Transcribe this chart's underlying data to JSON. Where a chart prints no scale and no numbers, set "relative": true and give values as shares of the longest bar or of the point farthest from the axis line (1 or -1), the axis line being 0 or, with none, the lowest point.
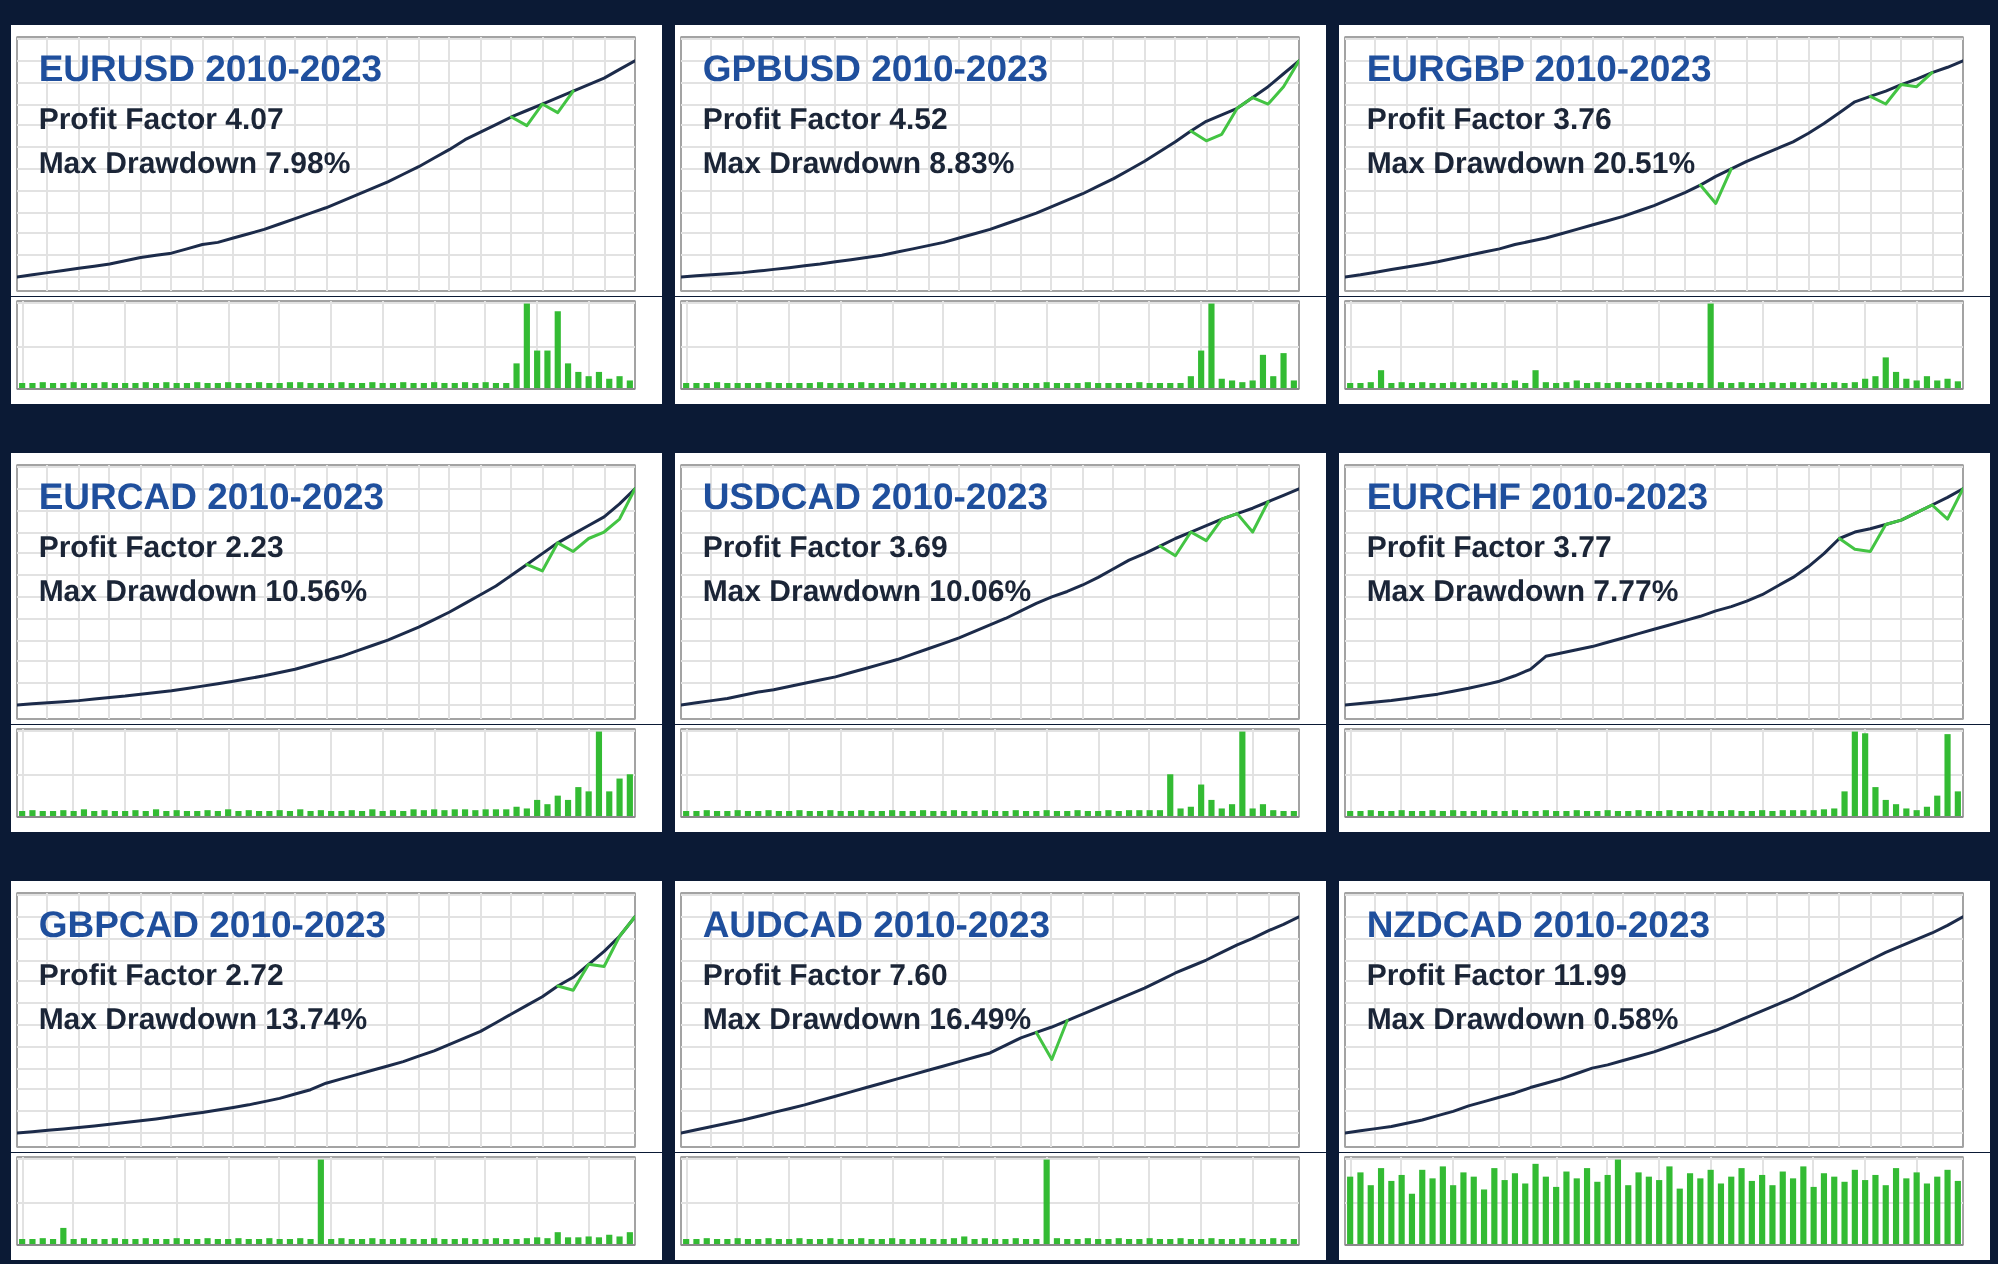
{
  "chart_data": [
    {
      "type": "line",
      "title": "EURUSD 2010-2023",
      "annotations": [
        "Profit Factor 4.07",
        "Max Drawdown 7.98%"
      ],
      "relative": true,
      "grid": true,
      "categories": [
        null,
        null,
        null,
        null,
        null,
        null,
        null,
        null,
        null,
        null,
        null,
        null,
        null,
        null,
        null,
        null,
        null,
        null,
        null,
        null,
        null,
        null,
        null,
        null,
        null,
        null,
        null,
        null,
        null,
        null,
        null,
        null,
        null,
        null,
        null,
        null,
        null,
        null,
        null,
        null,
        null
      ],
      "series": [
        {
          "color": "#1c2b4a",
          "values": [
            0,
            0.01,
            0.02,
            0.03,
            0.04,
            0.05,
            0.06,
            0.075,
            0.09,
            0.1,
            0.11,
            0.13,
            0.15,
            0.16,
            0.18,
            0.2,
            0.22,
            0.245,
            0.27,
            0.295,
            0.32,
            0.35,
            0.38,
            0.41,
            0.44,
            0.475,
            0.51,
            0.55,
            0.59,
            0.635,
            0.67,
            0.705,
            0.74,
            0.77,
            0.8,
            0.83,
            0.86,
            0.89,
            0.92,
            0.96,
            1.0
          ]
        },
        {
          "color": "#43c443",
          "values": [
            null,
            null,
            null,
            null,
            null,
            null,
            null,
            null,
            null,
            null,
            null,
            null,
            null,
            null,
            null,
            null,
            null,
            null,
            null,
            null,
            null,
            null,
            null,
            null,
            null,
            null,
            null,
            null,
            null,
            null,
            null,
            null,
            0.74,
            0.7,
            0.8,
            0.76,
            0.86,
            null,
            null,
            null,
            null
          ]
        }
      ]
    },
    {
      "type": "bar",
      "relative": true,
      "grid": true,
      "color": "#33bb33",
      "categories": [
        null,
        null,
        null,
        null,
        null,
        null,
        null,
        null,
        null,
        null,
        null,
        null,
        null,
        null,
        null,
        null,
        null,
        null,
        null,
        null,
        null,
        null,
        null,
        null,
        null,
        null,
        null,
        null,
        null,
        null,
        null,
        null,
        null,
        null,
        null,
        null,
        null,
        null,
        null,
        null,
        null,
        null,
        null,
        null,
        null,
        null,
        null,
        null,
        null,
        null,
        null,
        null,
        null,
        null,
        null,
        null,
        null,
        null,
        null,
        null
      ],
      "values": [
        0.07,
        0.07,
        0.08,
        0.07,
        0.07,
        0.08,
        0.07,
        0.07,
        0.08,
        0.07,
        0.07,
        0.07,
        0.08,
        0.07,
        0.08,
        0.07,
        0.07,
        0.08,
        0.07,
        0.07,
        0.08,
        0.07,
        0.07,
        0.08,
        0.07,
        0.07,
        0.08,
        0.08,
        0.07,
        0.07,
        0.07,
        0.08,
        0.07,
        0.07,
        0.08,
        0.07,
        0.07,
        0.08,
        0.07,
        0.07,
        0.08,
        0.07,
        0.07,
        0.08,
        0.07,
        0.08,
        0.07,
        0.07,
        0.3,
        1.0,
        0.45,
        0.45,
        0.91,
        0.3,
        0.2,
        0.15,
        0.2,
        0.12,
        0.15,
        0.1
      ]
    },
    {
      "type": "line",
      "title": "GPBUSD 2010-2023",
      "annotations": [
        "Profit Factor 4.52",
        "Max Drawdown 8.83%"
      ],
      "relative": true,
      "grid": true,
      "categories": [
        null,
        null,
        null,
        null,
        null,
        null,
        null,
        null,
        null,
        null,
        null,
        null,
        null,
        null,
        null,
        null,
        null,
        null,
        null,
        null,
        null,
        null,
        null,
        null,
        null,
        null,
        null,
        null,
        null,
        null,
        null,
        null,
        null,
        null,
        null,
        null,
        null,
        null,
        null,
        null,
        null
      ],
      "series": [
        {
          "color": "#1c2b4a",
          "values": [
            0,
            0.005,
            0.01,
            0.015,
            0.02,
            0.027,
            0.035,
            0.043,
            0.052,
            0.06,
            0.07,
            0.08,
            0.09,
            0.1,
            0.115,
            0.13,
            0.145,
            0.16,
            0.18,
            0.2,
            0.22,
            0.245,
            0.27,
            0.295,
            0.325,
            0.355,
            0.385,
            0.42,
            0.455,
            0.495,
            0.535,
            0.58,
            0.625,
            0.675,
            0.72,
            0.75,
            0.78,
            0.83,
            0.88,
            0.94,
            1.0
          ]
        },
        {
          "color": "#43c443",
          "values": [
            null,
            null,
            null,
            null,
            null,
            null,
            null,
            null,
            null,
            null,
            null,
            null,
            null,
            null,
            null,
            null,
            null,
            null,
            null,
            null,
            null,
            null,
            null,
            null,
            null,
            null,
            null,
            null,
            null,
            null,
            null,
            null,
            null,
            0.675,
            0.63,
            0.66,
            0.78,
            0.83,
            0.8,
            0.88,
            1.0
          ]
        }
      ]
    },
    {
      "type": "bar",
      "relative": true,
      "grid": true,
      "color": "#33bb33",
      "categories": [
        null,
        null,
        null,
        null,
        null,
        null,
        null,
        null,
        null,
        null,
        null,
        null,
        null,
        null,
        null,
        null,
        null,
        null,
        null,
        null,
        null,
        null,
        null,
        null,
        null,
        null,
        null,
        null,
        null,
        null,
        null,
        null,
        null,
        null,
        null,
        null,
        null,
        null,
        null,
        null,
        null,
        null,
        null,
        null,
        null,
        null,
        null,
        null,
        null,
        null,
        null,
        null,
        null,
        null,
        null,
        null,
        null,
        null,
        null,
        null
      ],
      "values": [
        0.07,
        0.07,
        0.07,
        0.08,
        0.07,
        0.07,
        0.07,
        0.07,
        0.08,
        0.07,
        0.07,
        0.07,
        0.07,
        0.08,
        0.07,
        0.07,
        0.07,
        0.08,
        0.07,
        0.07,
        0.07,
        0.08,
        0.07,
        0.07,
        0.07,
        0.07,
        0.08,
        0.07,
        0.07,
        0.07,
        0.08,
        0.07,
        0.07,
        0.07,
        0.07,
        0.08,
        0.07,
        0.07,
        0.07,
        0.08,
        0.07,
        0.07,
        0.07,
        0.07,
        0.08,
        0.07,
        0.07,
        0.07,
        0.07,
        0.15,
        0.45,
        1.0,
        0.12,
        0.1,
        0.08,
        0.1,
        0.4,
        0.15,
        0.42,
        0.1
      ]
    },
    {
      "type": "line",
      "title": "EURGBP 2010-2023",
      "annotations": [
        "Profit Factor 3.76",
        "Max Drawdown 20.51%"
      ],
      "relative": true,
      "grid": true,
      "categories": [
        null,
        null,
        null,
        null,
        null,
        null,
        null,
        null,
        null,
        null,
        null,
        null,
        null,
        null,
        null,
        null,
        null,
        null,
        null,
        null,
        null,
        null,
        null,
        null,
        null,
        null,
        null,
        null,
        null,
        null,
        null,
        null,
        null,
        null,
        null,
        null,
        null,
        null,
        null,
        null,
        null
      ],
      "series": [
        {
          "color": "#1c2b4a",
          "values": [
            0,
            0.01,
            0.022,
            0.034,
            0.046,
            0.058,
            0.07,
            0.085,
            0.1,
            0.115,
            0.13,
            0.15,
            0.165,
            0.18,
            0.2,
            0.22,
            0.24,
            0.26,
            0.28,
            0.305,
            0.33,
            0.36,
            0.39,
            0.425,
            0.465,
            0.5,
            0.535,
            0.565,
            0.595,
            0.625,
            0.665,
            0.71,
            0.76,
            0.81,
            0.835,
            0.86,
            0.89,
            0.915,
            0.945,
            0.97,
            1.0
          ]
        },
        {
          "color": "#43c443",
          "values": [
            null,
            null,
            null,
            null,
            null,
            null,
            null,
            null,
            null,
            null,
            null,
            null,
            null,
            null,
            null,
            null,
            null,
            null,
            null,
            null,
            null,
            null,
            null,
            0.425,
            0.34,
            0.5,
            null,
            null,
            null,
            null,
            null,
            null,
            null,
            null,
            0.835,
            0.8,
            0.89,
            0.88,
            0.945,
            null,
            null
          ]
        }
      ]
    },
    {
      "type": "bar",
      "relative": true,
      "grid": true,
      "color": "#33bb33",
      "categories": [
        null,
        null,
        null,
        null,
        null,
        null,
        null,
        null,
        null,
        null,
        null,
        null,
        null,
        null,
        null,
        null,
        null,
        null,
        null,
        null,
        null,
        null,
        null,
        null,
        null,
        null,
        null,
        null,
        null,
        null,
        null,
        null,
        null,
        null,
        null,
        null,
        null,
        null,
        null,
        null,
        null,
        null,
        null,
        null,
        null,
        null,
        null,
        null,
        null,
        null,
        null,
        null,
        null,
        null,
        null,
        null,
        null,
        null,
        null,
        null
      ],
      "values": [
        0.07,
        0.07,
        0.08,
        0.22,
        0.07,
        0.08,
        0.07,
        0.08,
        0.07,
        0.07,
        0.08,
        0.07,
        0.08,
        0.07,
        0.08,
        0.07,
        0.1,
        0.07,
        0.22,
        0.08,
        0.07,
        0.08,
        0.1,
        0.07,
        0.08,
        0.07,
        0.08,
        0.07,
        0.07,
        0.08,
        0.07,
        0.08,
        0.07,
        0.08,
        0.07,
        1.0,
        0.08,
        0.07,
        0.08,
        0.07,
        0.07,
        0.08,
        0.07,
        0.08,
        0.07,
        0.08,
        0.07,
        0.08,
        0.07,
        0.08,
        0.12,
        0.15,
        0.37,
        0.2,
        0.12,
        0.1,
        0.15,
        0.1,
        0.12,
        0.09
      ]
    },
    {
      "type": "line",
      "title": "EURCAD 2010-2023",
      "annotations": [
        "Profit Factor 2.23",
        "Max Drawdown 10.56%"
      ],
      "relative": true,
      "grid": true,
      "categories": [
        null,
        null,
        null,
        null,
        null,
        null,
        null,
        null,
        null,
        null,
        null,
        null,
        null,
        null,
        null,
        null,
        null,
        null,
        null,
        null,
        null,
        null,
        null,
        null,
        null,
        null,
        null,
        null,
        null,
        null,
        null,
        null,
        null,
        null,
        null,
        null,
        null,
        null,
        null,
        null,
        null
      ],
      "series": [
        {
          "color": "#1c2b4a",
          "values": [
            0,
            0.005,
            0.01,
            0.015,
            0.02,
            0.027,
            0.034,
            0.041,
            0.05,
            0.058,
            0.066,
            0.076,
            0.087,
            0.098,
            0.11,
            0.122,
            0.135,
            0.15,
            0.165,
            0.185,
            0.205,
            0.225,
            0.25,
            0.275,
            0.3,
            0.33,
            0.36,
            0.395,
            0.43,
            0.47,
            0.51,
            0.55,
            0.6,
            0.65,
            0.7,
            0.75,
            0.79,
            0.83,
            0.87,
            0.93,
            1.0
          ]
        },
        {
          "color": "#43c443",
          "values": [
            null,
            null,
            null,
            null,
            null,
            null,
            null,
            null,
            null,
            null,
            null,
            null,
            null,
            null,
            null,
            null,
            null,
            null,
            null,
            null,
            null,
            null,
            null,
            null,
            null,
            null,
            null,
            null,
            null,
            null,
            null,
            null,
            null,
            0.65,
            0.62,
            0.75,
            0.71,
            0.77,
            0.8,
            0.86,
            1.0
          ]
        }
      ]
    },
    {
      "type": "bar",
      "relative": true,
      "grid": true,
      "color": "#33bb33",
      "categories": [
        null,
        null,
        null,
        null,
        null,
        null,
        null,
        null,
        null,
        null,
        null,
        null,
        null,
        null,
        null,
        null,
        null,
        null,
        null,
        null,
        null,
        null,
        null,
        null,
        null,
        null,
        null,
        null,
        null,
        null,
        null,
        null,
        null,
        null,
        null,
        null,
        null,
        null,
        null,
        null,
        null,
        null,
        null,
        null,
        null,
        null,
        null,
        null,
        null,
        null,
        null,
        null,
        null,
        null,
        null,
        null,
        null,
        null,
        null,
        null
      ],
      "values": [
        0.07,
        0.08,
        0.07,
        0.07,
        0.08,
        0.07,
        0.09,
        0.07,
        0.08,
        0.07,
        0.07,
        0.08,
        0.07,
        0.09,
        0.07,
        0.08,
        0.07,
        0.07,
        0.08,
        0.07,
        0.09,
        0.07,
        0.08,
        0.07,
        0.07,
        0.08,
        0.07,
        0.09,
        0.07,
        0.08,
        0.07,
        0.07,
        0.08,
        0.07,
        0.09,
        0.07,
        0.08,
        0.07,
        0.09,
        0.08,
        0.09,
        0.08,
        0.09,
        0.09,
        0.08,
        0.09,
        0.09,
        0.09,
        0.12,
        0.1,
        0.2,
        0.15,
        0.25,
        0.2,
        0.35,
        0.3,
        1.0,
        0.3,
        0.45,
        0.5
      ]
    },
    {
      "type": "line",
      "title": "USDCAD 2010-2023",
      "annotations": [
        "Profit Factor 3.69",
        "Max Drawdown 10.06%"
      ],
      "relative": true,
      "grid": true,
      "categories": [
        null,
        null,
        null,
        null,
        null,
        null,
        null,
        null,
        null,
        null,
        null,
        null,
        null,
        null,
        null,
        null,
        null,
        null,
        null,
        null,
        null,
        null,
        null,
        null,
        null,
        null,
        null,
        null,
        null,
        null,
        null,
        null,
        null,
        null,
        null,
        null,
        null,
        null,
        null,
        null,
        null
      ],
      "series": [
        {
          "color": "#1c2b4a",
          "values": [
            0,
            0.01,
            0.02,
            0.03,
            0.045,
            0.06,
            0.07,
            0.085,
            0.1,
            0.115,
            0.13,
            0.15,
            0.17,
            0.19,
            0.21,
            0.235,
            0.26,
            0.285,
            0.31,
            0.34,
            0.37,
            0.4,
            0.435,
            0.47,
            0.5,
            0.525,
            0.555,
            0.59,
            0.63,
            0.67,
            0.7,
            0.735,
            0.77,
            0.8,
            0.83,
            0.86,
            0.885,
            0.91,
            0.94,
            0.97,
            1.0
          ]
        },
        {
          "color": "#43c443",
          "values": [
            null,
            null,
            null,
            null,
            null,
            null,
            null,
            null,
            null,
            null,
            null,
            null,
            null,
            null,
            null,
            null,
            null,
            null,
            null,
            null,
            null,
            null,
            null,
            null,
            null,
            null,
            null,
            null,
            null,
            null,
            null,
            0.735,
            0.69,
            0.8,
            0.76,
            0.86,
            0.885,
            0.8,
            0.94,
            null,
            null
          ]
        }
      ]
    },
    {
      "type": "bar",
      "relative": true,
      "grid": true,
      "color": "#33bb33",
      "categories": [
        null,
        null,
        null,
        null,
        null,
        null,
        null,
        null,
        null,
        null,
        null,
        null,
        null,
        null,
        null,
        null,
        null,
        null,
        null,
        null,
        null,
        null,
        null,
        null,
        null,
        null,
        null,
        null,
        null,
        null,
        null,
        null,
        null,
        null,
        null,
        null,
        null,
        null,
        null,
        null,
        null,
        null,
        null,
        null,
        null,
        null,
        null,
        null,
        null,
        null,
        null,
        null,
        null,
        null,
        null,
        null,
        null,
        null,
        null,
        null
      ],
      "values": [
        0.07,
        0.07,
        0.08,
        0.07,
        0.07,
        0.08,
        0.07,
        0.07,
        0.08,
        0.07,
        0.07,
        0.08,
        0.07,
        0.07,
        0.08,
        0.07,
        0.07,
        0.08,
        0.07,
        0.07,
        0.08,
        0.07,
        0.07,
        0.08,
        0.07,
        0.07,
        0.08,
        0.07,
        0.07,
        0.08,
        0.07,
        0.07,
        0.08,
        0.07,
        0.07,
        0.08,
        0.07,
        0.07,
        0.08,
        0.07,
        0.07,
        0.08,
        0.07,
        0.08,
        0.08,
        0.08,
        0.08,
        0.5,
        0.1,
        0.12,
        0.38,
        0.2,
        0.1,
        0.15,
        1.0,
        0.1,
        0.15,
        0.08,
        0.07,
        0.07
      ]
    },
    {
      "type": "line",
      "title": "EURCHF 2010-2023",
      "annotations": [
        "Profit Factor 3.77",
        "Max Drawdown 7.77%"
      ],
      "relative": true,
      "grid": true,
      "categories": [
        null,
        null,
        null,
        null,
        null,
        null,
        null,
        null,
        null,
        null,
        null,
        null,
        null,
        null,
        null,
        null,
        null,
        null,
        null,
        null,
        null,
        null,
        null,
        null,
        null,
        null,
        null,
        null,
        null,
        null,
        null,
        null,
        null,
        null,
        null,
        null,
        null,
        null,
        null,
        null,
        null
      ],
      "series": [
        {
          "color": "#1c2b4a",
          "values": [
            0,
            0.007,
            0.014,
            0.021,
            0.03,
            0.04,
            0.05,
            0.063,
            0.077,
            0.093,
            0.11,
            0.135,
            0.165,
            0.225,
            0.24,
            0.255,
            0.27,
            0.29,
            0.31,
            0.33,
            0.35,
            0.37,
            0.39,
            0.41,
            0.435,
            0.455,
            0.48,
            0.51,
            0.55,
            0.59,
            0.64,
            0.7,
            0.77,
            0.8,
            0.815,
            0.835,
            0.855,
            0.89,
            0.925,
            0.96,
            1.0
          ]
        },
        {
          "color": "#43c443",
          "values": [
            null,
            null,
            null,
            null,
            null,
            null,
            null,
            null,
            null,
            null,
            null,
            null,
            null,
            null,
            null,
            null,
            null,
            null,
            null,
            null,
            null,
            null,
            null,
            null,
            null,
            null,
            null,
            null,
            null,
            null,
            null,
            null,
            0.77,
            0.72,
            0.71,
            0.835,
            0.855,
            0.89,
            0.925,
            0.86,
            1.0
          ]
        }
      ]
    },
    {
      "type": "bar",
      "relative": true,
      "grid": true,
      "color": "#33bb33",
      "categories": [
        null,
        null,
        null,
        null,
        null,
        null,
        null,
        null,
        null,
        null,
        null,
        null,
        null,
        null,
        null,
        null,
        null,
        null,
        null,
        null,
        null,
        null,
        null,
        null,
        null,
        null,
        null,
        null,
        null,
        null,
        null,
        null,
        null,
        null,
        null,
        null,
        null,
        null,
        null,
        null,
        null,
        null,
        null,
        null,
        null,
        null,
        null,
        null,
        null,
        null,
        null,
        null,
        null,
        null,
        null,
        null,
        null,
        null,
        null,
        null
      ],
      "values": [
        0.07,
        0.07,
        0.08,
        0.07,
        0.07,
        0.08,
        0.07,
        0.07,
        0.08,
        0.07,
        0.08,
        0.07,
        0.07,
        0.08,
        0.07,
        0.07,
        0.08,
        0.07,
        0.07,
        0.08,
        0.07,
        0.07,
        0.08,
        0.07,
        0.07,
        0.08,
        0.07,
        0.07,
        0.08,
        0.07,
        0.07,
        0.08,
        0.07,
        0.07,
        0.08,
        0.07,
        0.07,
        0.08,
        0.07,
        0.07,
        0.08,
        0.07,
        0.08,
        0.08,
        0.08,
        0.08,
        0.09,
        0.1,
        0.3,
        1.0,
        0.98,
        0.35,
        0.2,
        0.15,
        0.1,
        0.08,
        0.12,
        0.25,
        0.97,
        0.3
      ]
    },
    {
      "type": "line",
      "title": "GBPCAD 2010-2023",
      "annotations": [
        "Profit Factor 2.72",
        "Max Drawdown 13.74%"
      ],
      "relative": true,
      "grid": true,
      "categories": [
        null,
        null,
        null,
        null,
        null,
        null,
        null,
        null,
        null,
        null,
        null,
        null,
        null,
        null,
        null,
        null,
        null,
        null,
        null,
        null,
        null,
        null,
        null,
        null,
        null,
        null,
        null,
        null,
        null,
        null,
        null,
        null,
        null,
        null,
        null,
        null,
        null,
        null,
        null,
        null,
        null
      ],
      "series": [
        {
          "color": "#1c2b4a",
          "values": [
            0,
            0.006,
            0.012,
            0.018,
            0.025,
            0.032,
            0.04,
            0.048,
            0.056,
            0.065,
            0.075,
            0.085,
            0.095,
            0.106,
            0.118,
            0.13,
            0.145,
            0.16,
            0.18,
            0.2,
            0.23,
            0.25,
            0.27,
            0.29,
            0.31,
            0.33,
            0.355,
            0.38,
            0.41,
            0.44,
            0.47,
            0.51,
            0.55,
            0.59,
            0.63,
            0.68,
            0.72,
            0.78,
            0.84,
            0.91,
            1.0
          ]
        },
        {
          "color": "#43c443",
          "values": [
            null,
            null,
            null,
            null,
            null,
            null,
            null,
            null,
            null,
            null,
            null,
            null,
            null,
            null,
            null,
            null,
            null,
            null,
            null,
            null,
            null,
            null,
            null,
            null,
            null,
            null,
            null,
            null,
            null,
            null,
            null,
            null,
            null,
            null,
            null,
            0.68,
            0.66,
            0.78,
            0.77,
            0.91,
            1.0
          ]
        }
      ]
    },
    {
      "type": "bar",
      "relative": true,
      "grid": true,
      "color": "#33bb33",
      "categories": [
        null,
        null,
        null,
        null,
        null,
        null,
        null,
        null,
        null,
        null,
        null,
        null,
        null,
        null,
        null,
        null,
        null,
        null,
        null,
        null,
        null,
        null,
        null,
        null,
        null,
        null,
        null,
        null,
        null,
        null,
        null,
        null,
        null,
        null,
        null,
        null,
        null,
        null,
        null,
        null,
        null,
        null,
        null,
        null,
        null,
        null,
        null,
        null,
        null,
        null,
        null,
        null,
        null,
        null,
        null,
        null,
        null,
        null,
        null,
        null
      ],
      "values": [
        0.07,
        0.07,
        0.08,
        0.07,
        0.2,
        0.07,
        0.08,
        0.07,
        0.07,
        0.08,
        0.07,
        0.07,
        0.08,
        0.07,
        0.07,
        0.08,
        0.07,
        0.07,
        0.08,
        0.07,
        0.07,
        0.08,
        0.07,
        0.07,
        0.08,
        0.07,
        0.07,
        0.08,
        0.07,
        1.0,
        0.07,
        0.08,
        0.07,
        0.07,
        0.08,
        0.07,
        0.07,
        0.08,
        0.07,
        0.07,
        0.08,
        0.07,
        0.07,
        0.08,
        0.07,
        0.07,
        0.08,
        0.07,
        0.07,
        0.08,
        0.09,
        0.08,
        0.15,
        0.09,
        0.09,
        0.1,
        0.09,
        0.12,
        0.1,
        0.15
      ]
    },
    {
      "type": "line",
      "title": "AUDCAD 2010-2023",
      "annotations": [
        "Profit Factor 7.60",
        "Max Drawdown 16.49%"
      ],
      "relative": true,
      "grid": true,
      "categories": [
        null,
        null,
        null,
        null,
        null,
        null,
        null,
        null,
        null,
        null,
        null,
        null,
        null,
        null,
        null,
        null,
        null,
        null,
        null,
        null,
        null,
        null,
        null,
        null,
        null,
        null,
        null,
        null,
        null,
        null,
        null,
        null,
        null,
        null,
        null,
        null,
        null,
        null,
        null,
        null,
        null
      ],
      "series": [
        {
          "color": "#1c2b4a",
          "values": [
            0,
            0.015,
            0.03,
            0.045,
            0.06,
            0.077,
            0.095,
            0.112,
            0.13,
            0.15,
            0.17,
            0.19,
            0.21,
            0.23,
            0.25,
            0.27,
            0.29,
            0.31,
            0.33,
            0.35,
            0.37,
            0.405,
            0.44,
            0.465,
            0.49,
            0.52,
            0.55,
            0.58,
            0.61,
            0.64,
            0.67,
            0.705,
            0.74,
            0.77,
            0.8,
            0.835,
            0.87,
            0.9,
            0.935,
            0.965,
            1.0
          ]
        },
        {
          "color": "#43c443",
          "values": [
            null,
            null,
            null,
            null,
            null,
            null,
            null,
            null,
            null,
            null,
            null,
            null,
            null,
            null,
            null,
            null,
            null,
            null,
            null,
            null,
            null,
            null,
            null,
            0.465,
            0.34,
            0.52,
            null,
            null,
            null,
            null,
            null,
            null,
            null,
            null,
            null,
            null,
            null,
            null,
            null,
            null,
            null
          ]
        }
      ]
    },
    {
      "type": "bar",
      "relative": true,
      "grid": true,
      "color": "#33bb33",
      "categories": [
        null,
        null,
        null,
        null,
        null,
        null,
        null,
        null,
        null,
        null,
        null,
        null,
        null,
        null,
        null,
        null,
        null,
        null,
        null,
        null,
        null,
        null,
        null,
        null,
        null,
        null,
        null,
        null,
        null,
        null,
        null,
        null,
        null,
        null,
        null,
        null,
        null,
        null,
        null,
        null,
        null,
        null,
        null,
        null,
        null,
        null,
        null,
        null,
        null,
        null,
        null,
        null,
        null,
        null,
        null,
        null,
        null,
        null,
        null,
        null
      ],
      "values": [
        0.07,
        0.07,
        0.08,
        0.07,
        0.07,
        0.08,
        0.07,
        0.07,
        0.08,
        0.07,
        0.07,
        0.08,
        0.07,
        0.07,
        0.08,
        0.07,
        0.07,
        0.08,
        0.07,
        0.07,
        0.08,
        0.07,
        0.07,
        0.08,
        0.07,
        0.07,
        0.08,
        0.1,
        0.07,
        0.08,
        0.07,
        0.07,
        0.08,
        0.07,
        0.07,
        1.0,
        0.08,
        0.07,
        0.07,
        0.08,
        0.07,
        0.07,
        0.08,
        0.07,
        0.07,
        0.08,
        0.07,
        0.07,
        0.08,
        0.07,
        0.07,
        0.08,
        0.07,
        0.07,
        0.08,
        0.07,
        0.07,
        0.08,
        0.07,
        0.07
      ]
    },
    {
      "type": "line",
      "title": "NZDCAD 2010-2023",
      "annotations": [
        "Profit Factor 11.99",
        "Max Drawdown 0.58%"
      ],
      "relative": true,
      "grid": true,
      "categories": [
        null,
        null,
        null,
        null,
        null,
        null,
        null,
        null,
        null,
        null,
        null,
        null,
        null,
        null,
        null,
        null,
        null,
        null,
        null,
        null,
        null,
        null,
        null,
        null,
        null,
        null,
        null,
        null,
        null,
        null,
        null,
        null,
        null,
        null,
        null,
        null,
        null,
        null,
        null,
        null,
        null
      ],
      "series": [
        {
          "color": "#1c2b4a",
          "values": [
            0,
            0.01,
            0.02,
            0.03,
            0.045,
            0.06,
            0.08,
            0.1,
            0.125,
            0.145,
            0.165,
            0.185,
            0.21,
            0.23,
            0.25,
            0.275,
            0.3,
            0.315,
            0.335,
            0.355,
            0.375,
            0.4,
            0.425,
            0.45,
            0.475,
            0.505,
            0.535,
            0.565,
            0.595,
            0.625,
            0.66,
            0.695,
            0.73,
            0.765,
            0.8,
            0.835,
            0.865,
            0.895,
            0.925,
            0.96,
            1.0
          ]
        }
      ]
    },
    {
      "type": "bar",
      "relative": true,
      "grid": true,
      "color": "#33bb33",
      "categories": [
        null,
        null,
        null,
        null,
        null,
        null,
        null,
        null,
        null,
        null,
        null,
        null,
        null,
        null,
        null,
        null,
        null,
        null,
        null,
        null,
        null,
        null,
        null,
        null,
        null,
        null,
        null,
        null,
        null,
        null,
        null,
        null,
        null,
        null,
        null,
        null,
        null,
        null,
        null,
        null,
        null,
        null,
        null,
        null,
        null,
        null,
        null,
        null,
        null,
        null,
        null,
        null,
        null,
        null,
        null,
        null,
        null,
        null,
        null,
        null
      ],
      "values": [
        0.8,
        0.85,
        0.7,
        0.9,
        0.75,
        0.82,
        0.6,
        0.88,
        0.78,
        0.92,
        0.7,
        0.85,
        0.8,
        0.65,
        0.9,
        0.76,
        0.84,
        0.72,
        0.95,
        0.8,
        0.68,
        0.86,
        0.78,
        0.9,
        0.74,
        0.82,
        1.0,
        0.7,
        0.85,
        0.8,
        0.76,
        0.92,
        0.66,
        0.84,
        0.78,
        0.88,
        0.72,
        0.8,
        0.9,
        0.75,
        0.82,
        0.7,
        0.86,
        0.78,
        0.92,
        0.68,
        0.84,
        0.8,
        0.74,
        0.88,
        0.76,
        0.82,
        0.7,
        0.9,
        0.78,
        0.85,
        0.72,
        0.8,
        0.88,
        0.75
      ]
    }
  ]
}
